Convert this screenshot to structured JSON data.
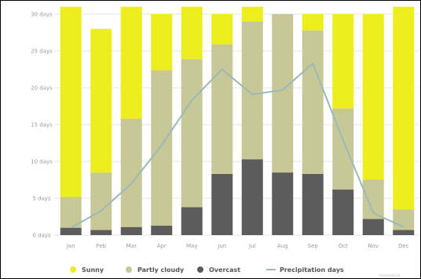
{
  "chart_data": {
    "type": "bar",
    "stacked": true,
    "categories": [
      "Jan",
      "Feb",
      "Mar",
      "Apr",
      "May",
      "Jun",
      "Jul",
      "Aug",
      "Sep",
      "Oct",
      "Nov",
      "Dec"
    ],
    "ylim": [
      0,
      30
    ],
    "y_ticks": [
      "0 days",
      "5 days",
      "10 days",
      "15 days",
      "20 days",
      "25 days",
      "30 days"
    ],
    "grid": true,
    "legend_position": "bottom",
    "series": [
      {
        "name": "Overcast",
        "type": "bar",
        "color": "#5c5c5c",
        "values": [
          1.0,
          0.7,
          1.1,
          1.3,
          3.8,
          8.3,
          10.3,
          8.5,
          8.3,
          6.2,
          2.2,
          0.7
        ]
      },
      {
        "name": "Partly cloudy",
        "type": "bar",
        "color": "#c8c896",
        "values": [
          4.2,
          7.8,
          14.7,
          21.1,
          20.1,
          17.6,
          18.7,
          21.5,
          19.5,
          11.0,
          5.3,
          2.8
        ]
      },
      {
        "name": "Sunny",
        "type": "bar",
        "color": "#eeee1e",
        "values": [
          25.8,
          19.5,
          15.2,
          7.6,
          7.1,
          4.1,
          2.0,
          0.0,
          2.2,
          12.8,
          22.5,
          27.5
        ]
      },
      {
        "name": "Precipitation days",
        "type": "line",
        "color": "#9bb8bb",
        "values": [
          1.0,
          3.3,
          7.0,
          12.2,
          18.3,
          22.5,
          19.1,
          19.7,
          23.3,
          12.9,
          3.0,
          1.1
        ]
      }
    ],
    "legend": [
      "Sunny",
      "Partly cloudy",
      "Overcast",
      "Precipitation days"
    ],
    "credit": "meteoblue"
  }
}
